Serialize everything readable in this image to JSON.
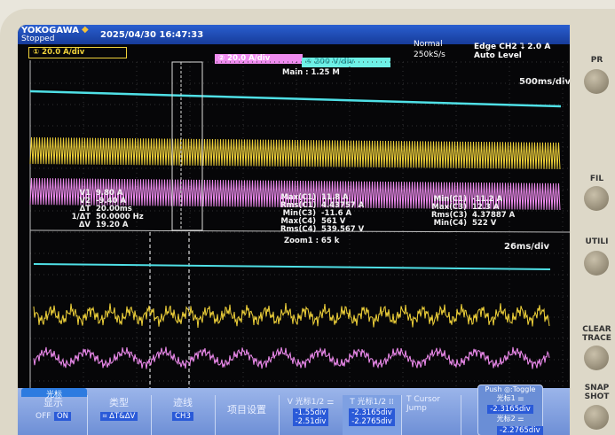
{
  "header": {
    "brand": "YOKOGAWA",
    "status": "Stopped",
    "datetime": "2025/04/30 16:47:33",
    "acq_mode": "Normal",
    "sample_rate": "250kS/s",
    "trigger": "Edge CH2 ⮧ 2.0 A",
    "trigger_level": "Auto Level"
  },
  "channels": [
    {
      "label": "① 20.0 A/div",
      "color": "#f0d23a"
    },
    {
      "label": "② 20.0 A/div",
      "color": "#f08cf0"
    },
    {
      "label": "④ 200 V/div",
      "color": "#6ef0e6"
    }
  ],
  "main": {
    "record": "Main : 1.25 M",
    "timebase": "500ms/div"
  },
  "zoom": {
    "record": "Zoom1 : 65 k",
    "timebase": "26ms/div"
  },
  "cursor_readout": [
    [
      "V1",
      "9.80 A"
    ],
    [
      "V2",
      "-9.40 A"
    ],
    [
      "ΔT",
      "20.00ms"
    ],
    [
      "1/ΔT",
      "50.0000 Hz"
    ],
    [
      "ΔV",
      "19.20 A"
    ]
  ],
  "measure_left": [
    [
      "Max(C1)",
      "11.8 A"
    ],
    [
      "Rms(C1)",
      "4.43757 A"
    ],
    [
      "Min(C3)",
      "-11.6 A"
    ],
    [
      "Max(C4)",
      "561 V"
    ],
    [
      "Rms(C4)",
      "539.567 V"
    ]
  ],
  "measure_right": [
    [
      "Min(C1)",
      "-11.2 A"
    ],
    [
      "Max(C3)",
      "12.3 A"
    ],
    [
      "Rms(C3)",
      "4.37887 A"
    ],
    [
      "Min(C4)",
      "522 V"
    ]
  ],
  "menu": {
    "tab": "光标",
    "display": "显示",
    "display_off": "OFF",
    "display_on": "ON",
    "type": "类型",
    "type_val": "⌗ ΔT&ΔV",
    "trace": "迹线",
    "trace_val": "CH3",
    "items": "项目设置",
    "v_cursor": "V 光标1/2 ⚌",
    "v1": "-1.55div",
    "v2": "-2.51div",
    "t_cursor": "T 光标1/2 ⁞⁞",
    "t1": "-2.3165div",
    "t2": "-2.2765div",
    "jump": "T Cursor",
    "jump2": "Jump",
    "push": "Push ◎:Toggle",
    "c1": "光标1 ⚌",
    "c1v": "-2.3165div",
    "c2": "光标2 ⚌",
    "c2v": "-2.2765div"
  },
  "panel": {
    "print": "PR",
    "file": "FIL",
    "utility": "UTILI",
    "clear": "CLEAR TRACE",
    "snap": "SNAP SHOT"
  }
}
